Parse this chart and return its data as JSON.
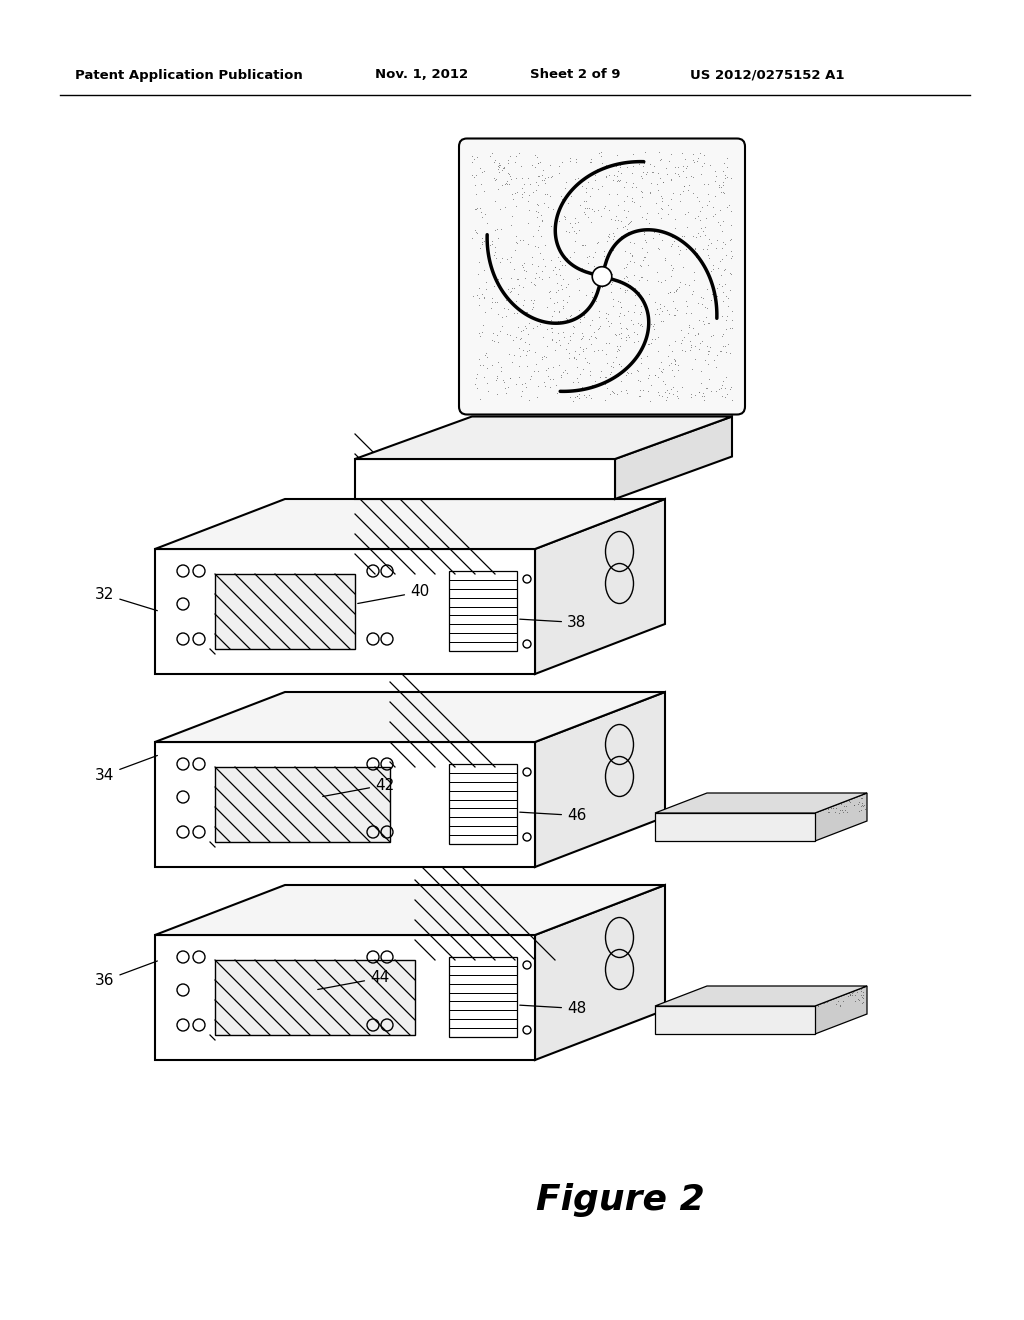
{
  "title_left": "Patent Application Publication",
  "title_date": "Nov. 1, 2012",
  "title_sheet": "Sheet 2 of 9",
  "title_patent": "US 2012/0275152 A1",
  "figure_label": "Figure 2",
  "background_color": "#ffffff",
  "line_color": "#000000",
  "face_color_front": "#ffffff",
  "face_color_top": "#f0f0f0",
  "face_color_right": "#e0e0e0",
  "stipple_color": "#c8c8c8",
  "labels": [
    "32",
    "34",
    "36",
    "38",
    "40",
    "42",
    "44",
    "46",
    "48"
  ]
}
